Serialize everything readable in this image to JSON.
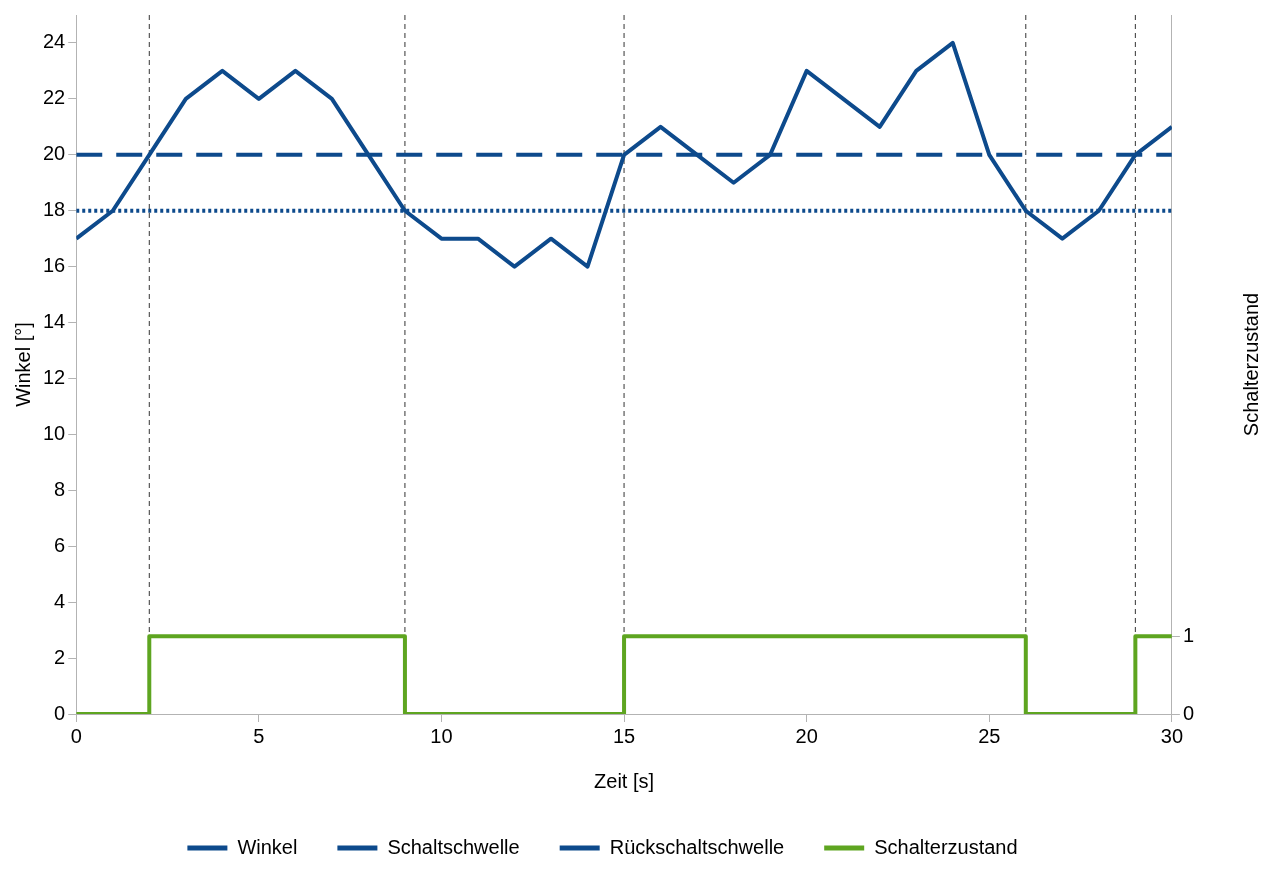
{
  "chart_data": {
    "type": "line",
    "xlabel": "Zeit [s]",
    "ylabel": "Winkel [°]",
    "y2label": "Schalterzustand",
    "xlim": [
      0,
      30
    ],
    "xticks": [
      0,
      5,
      10,
      15,
      20,
      25,
      30
    ],
    "ylim": [
      0,
      25
    ],
    "yticks": [
      0,
      2,
      4,
      6,
      8,
      10,
      12,
      14,
      16,
      18,
      20,
      22,
      24
    ],
    "y2lim": [
      0,
      9
    ],
    "y2ticks": [
      0,
      1
    ],
    "grid": false,
    "legend": "bottom",
    "marker": "none",
    "series": [
      {
        "name": "Winkel",
        "type": "line",
        "color": "#0d4a8c",
        "line_style": "solid",
        "x": [
          0,
          1,
          2,
          3,
          4,
          5,
          6,
          7,
          8,
          9,
          10,
          11,
          12,
          13,
          14,
          15,
          16,
          17,
          18,
          19,
          20,
          21,
          22,
          23,
          24,
          25,
          26,
          27,
          28,
          29,
          30
        ],
        "values": [
          17,
          18,
          20,
          22,
          23,
          22,
          23,
          22,
          20,
          18,
          17,
          17,
          16,
          17,
          16,
          20,
          21,
          20,
          19,
          20,
          23,
          22,
          21,
          23,
          24,
          20,
          18,
          17,
          18,
          20,
          21
        ]
      },
      {
        "name": "Schaltschwelle",
        "type": "line",
        "color": "#0d4a8c",
        "line_style": "dashed",
        "x": [
          0,
          30
        ],
        "values": [
          20,
          20
        ]
      },
      {
        "name": "Rückschaltschwelle",
        "type": "line",
        "color": "#0d4a8c",
        "line_style": "dotted",
        "x": [
          0,
          30
        ],
        "values": [
          18,
          18
        ]
      },
      {
        "name": "Schalterzustand",
        "type": "step",
        "axis": "y2",
        "color": "#5ea520",
        "line_style": "solid",
        "x": [
          0,
          2,
          9,
          15,
          26,
          29,
          30
        ],
        "values": [
          0,
          1,
          0,
          1,
          0,
          1,
          1
        ]
      }
    ],
    "ref_lines": [
      {
        "axis": "x",
        "value": 2,
        "color": "#333333",
        "line_style": "dashed"
      },
      {
        "axis": "x",
        "value": 9,
        "color": "#333333",
        "line_style": "dashed"
      },
      {
        "axis": "x",
        "value": 15,
        "color": "#333333",
        "line_style": "dashed"
      },
      {
        "axis": "x",
        "value": 26,
        "color": "#333333",
        "line_style": "dashed"
      },
      {
        "axis": "x",
        "value": 29,
        "color": "#333333",
        "line_style": "dashed"
      }
    ]
  }
}
